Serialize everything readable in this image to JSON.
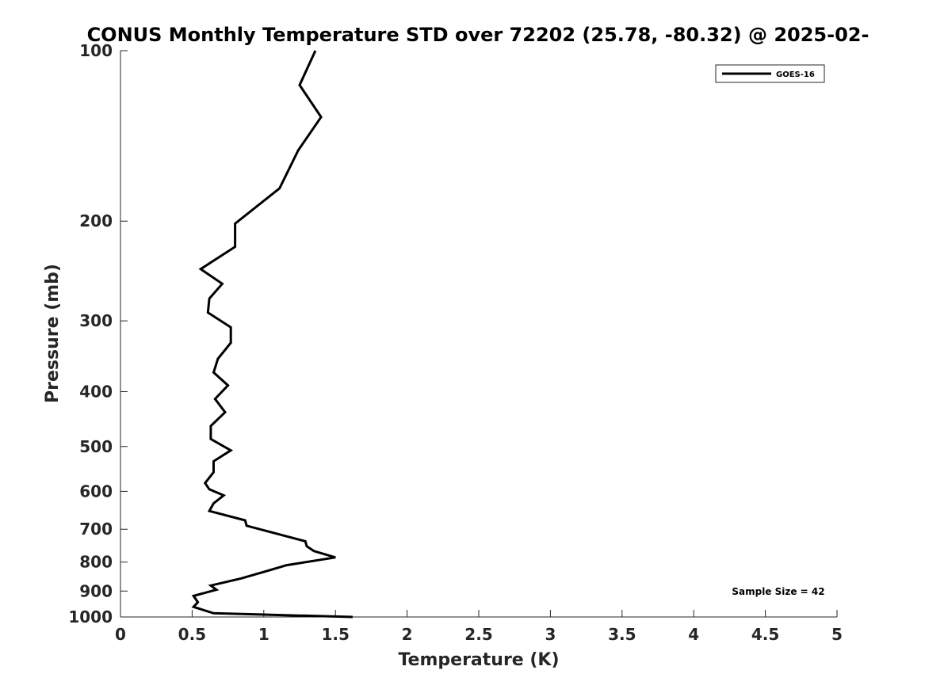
{
  "chart_data": {
    "type": "line",
    "title": "CONUS Monthly Temperature STD over 72202 (25.78, -80.32) @ 2025-02-",
    "xlabel": "Temperature (K)",
    "ylabel": "Pressure (mb)",
    "xlim": [
      0,
      5
    ],
    "ylim": [
      100,
      1000
    ],
    "y_scale": "log",
    "y_reversed": true,
    "x_ticks": [
      "0",
      "0.5",
      "1",
      "1.5",
      "2",
      "2.5",
      "3",
      "3.5",
      "4",
      "4.5",
      "5"
    ],
    "y_ticks": [
      "100",
      "200",
      "300",
      "400",
      "500",
      "600",
      "700",
      "800",
      "900",
      "1000"
    ],
    "grid": false,
    "legend": {
      "placement": "top-right",
      "entries": [
        "GOES-16"
      ]
    },
    "annotation": "Sample Size = 42",
    "line_color": "#000000",
    "series": [
      {
        "name": "GOES-16",
        "points": [
          [
            1.36,
            100
          ],
          [
            1.25,
            115
          ],
          [
            1.4,
            131
          ],
          [
            1.24,
            150
          ],
          [
            1.11,
            175
          ],
          [
            0.8,
            202
          ],
          [
            0.8,
            222
          ],
          [
            0.56,
            243
          ],
          [
            0.71,
            258
          ],
          [
            0.62,
            274
          ],
          [
            0.61,
            290
          ],
          [
            0.77,
            308
          ],
          [
            0.77,
            328
          ],
          [
            0.68,
            350
          ],
          [
            0.65,
            370
          ],
          [
            0.75,
            390
          ],
          [
            0.66,
            412
          ],
          [
            0.73,
            435
          ],
          [
            0.63,
            460
          ],
          [
            0.63,
            485
          ],
          [
            0.77,
            508
          ],
          [
            0.65,
            531
          ],
          [
            0.65,
            555
          ],
          [
            0.59,
            580
          ],
          [
            0.62,
            595
          ],
          [
            0.72,
            610
          ],
          [
            0.65,
            630
          ],
          [
            0.62,
            650
          ],
          [
            0.87,
            675
          ],
          [
            0.88,
            690
          ],
          [
            1.11,
            715
          ],
          [
            1.29,
            735
          ],
          [
            1.3,
            750
          ],
          [
            1.35,
            765
          ],
          [
            1.5,
            785
          ],
          [
            1.16,
            810
          ],
          [
            1.02,
            830
          ],
          [
            0.84,
            855
          ],
          [
            0.63,
            880
          ],
          [
            0.67,
            895
          ],
          [
            0.51,
            918
          ],
          [
            0.54,
            942
          ],
          [
            0.51,
            960
          ],
          [
            0.65,
            985
          ],
          [
            1.62,
            1000
          ]
        ]
      }
    ]
  }
}
